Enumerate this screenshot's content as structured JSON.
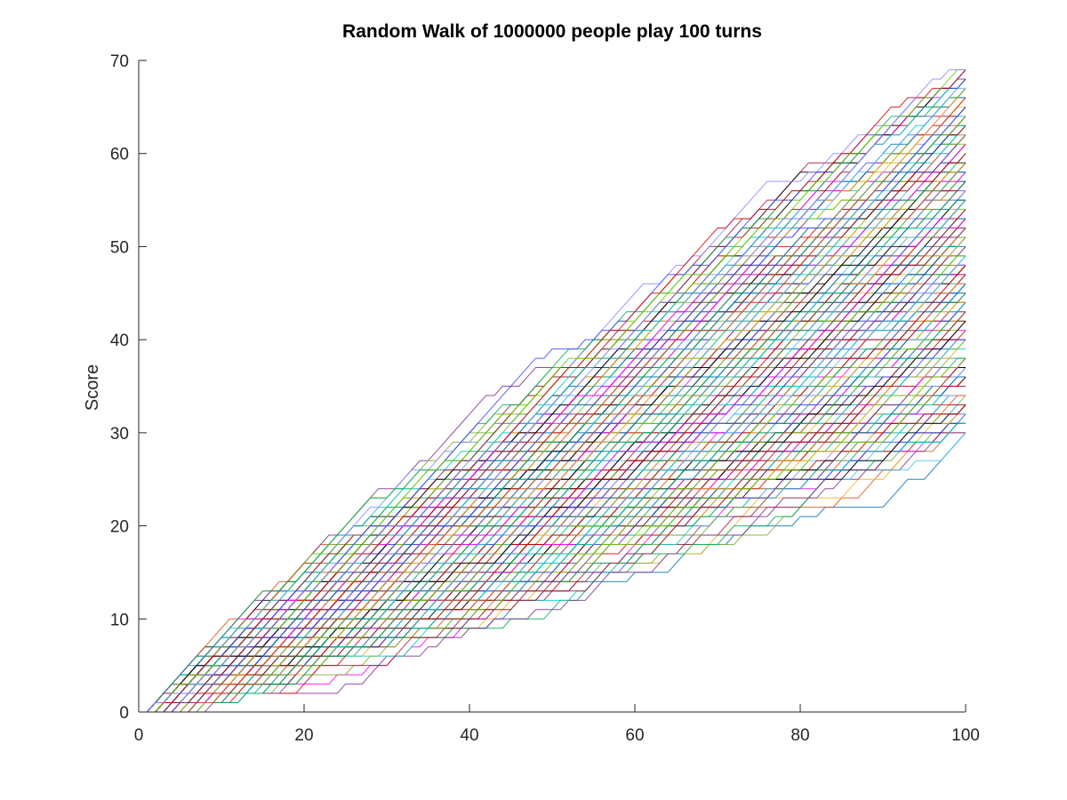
{
  "chart_data": {
    "type": "line",
    "title": "Random Walk of 1000000 people play 100 turns",
    "xlabel": "",
    "ylabel": "Score",
    "xlim": [
      0,
      100
    ],
    "ylim": [
      0,
      70
    ],
    "x_ticks": [
      "0",
      "20",
      "40",
      "60",
      "80",
      "100"
    ],
    "y_ticks": [
      "0",
      "10",
      "20",
      "30",
      "40",
      "50",
      "60",
      "70"
    ],
    "grid": false,
    "legend": "none",
    "x_start": 1,
    "x_end": 100,
    "step_rule": "Each turn the score either stays the same or increases by 1.",
    "final_score_range": [
      30,
      69
    ],
    "approximate_visible_series": 240,
    "series_colors": [
      "#0072bd",
      "#d95319",
      "#edb120",
      "#7e2f8e",
      "#77ac30",
      "#4dbeee",
      "#a2142f",
      "#000000",
      "#ff00ff",
      "#00aa55",
      "#4444ff",
      "#00cccc",
      "#cc0000",
      "#66cc00",
      "#8888ff"
    ]
  }
}
